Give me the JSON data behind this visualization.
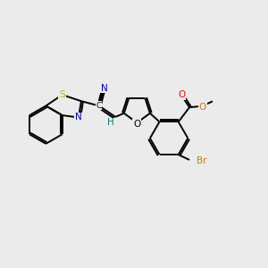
{
  "bg_color": "#ebebeb",
  "bond_lw": 1.4,
  "atom_colors": {
    "S": "#b8b800",
    "N": "#0000cc",
    "O_red": "#ff0000",
    "O_orange": "#cc7700",
    "Br": "#cc7700",
    "H": "#008080",
    "C": "#000000"
  },
  "figsize": [
    3.0,
    3.0
  ],
  "dpi": 100,
  "xlim": [
    0,
    10
  ],
  "ylim": [
    0,
    10
  ]
}
